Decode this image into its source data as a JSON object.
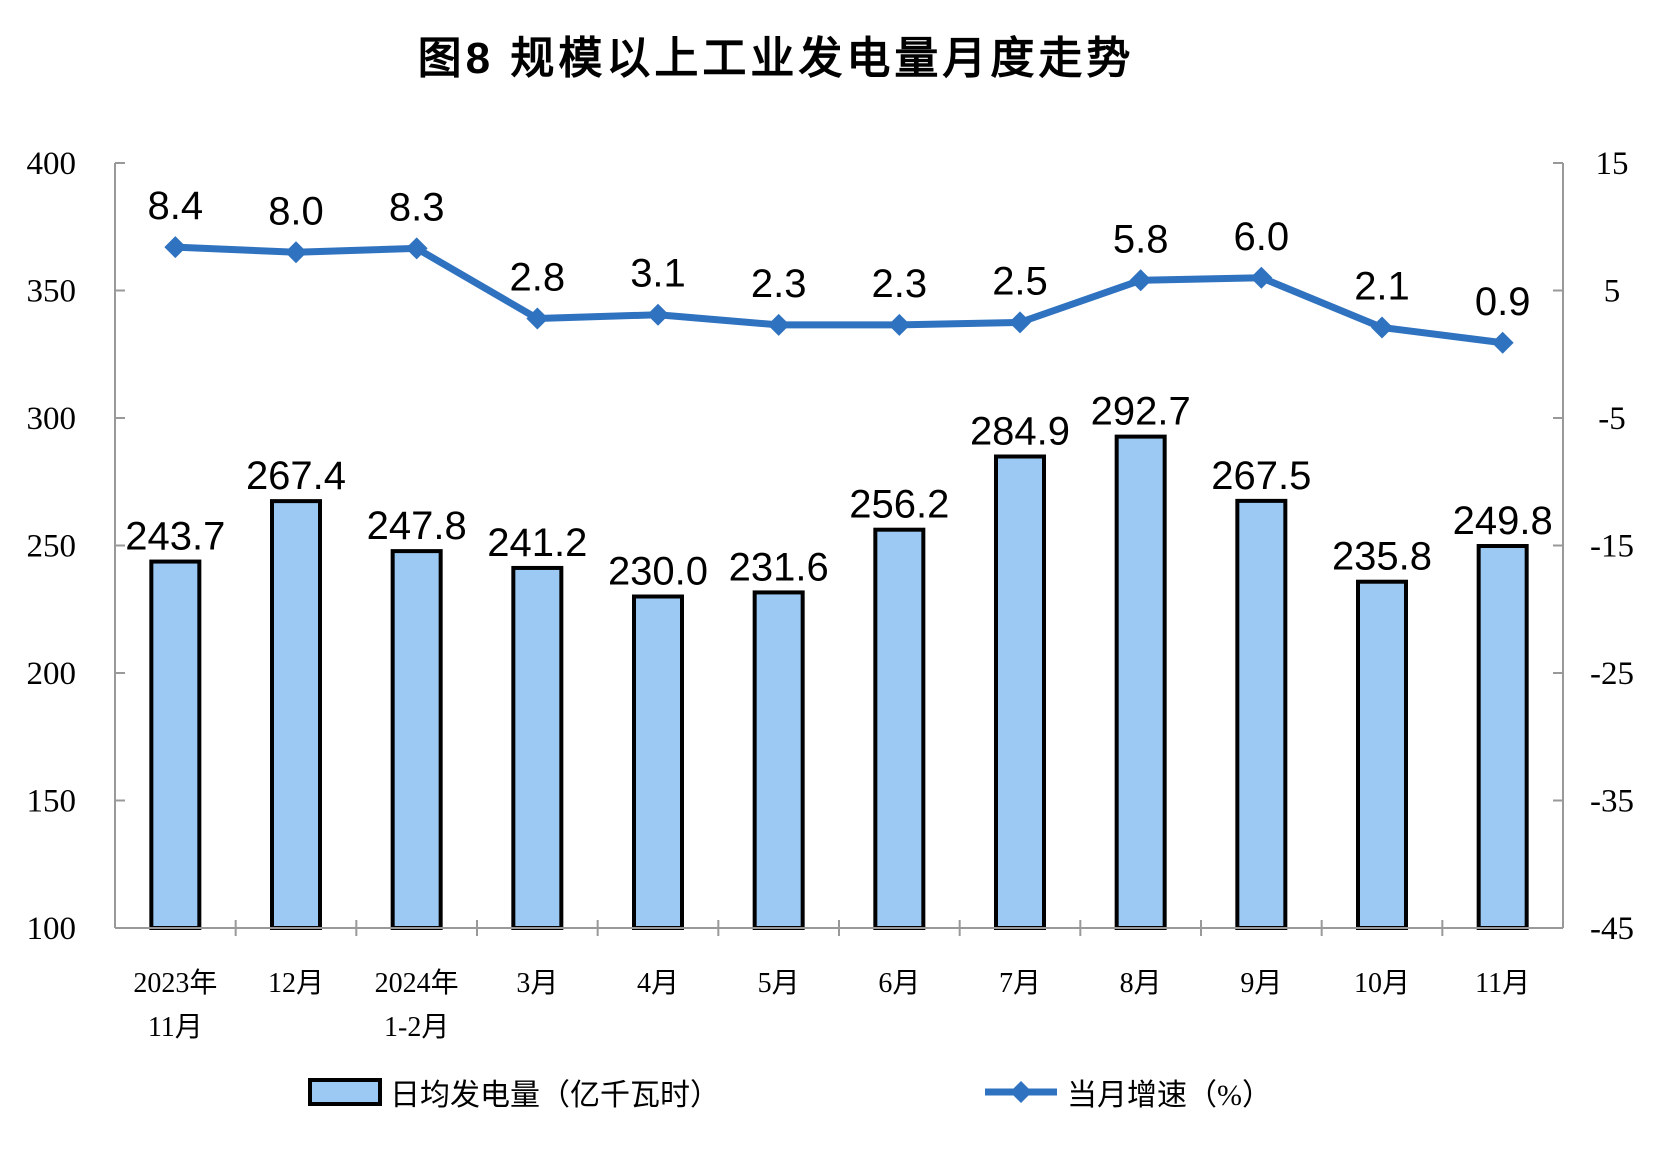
{
  "title": "图8 规模以上工业发电量月度走势",
  "legend": {
    "bar_label": "日均发电量（亿千瓦时）",
    "line_label": "当月增速（%）"
  },
  "colors": {
    "bar_fill": "#9CC9F3",
    "bar_border": "#000000",
    "line": "#2F72BF",
    "axis": "#999999",
    "text": "#000000",
    "background": "#FFFFFF"
  },
  "chart_data": {
    "type": "combo-bar-line",
    "title": "图8 规模以上工业发电量月度走势",
    "categories": [
      [
        "2023年",
        "11月"
      ],
      [
        "12月"
      ],
      [
        "2024年",
        "1-2月"
      ],
      [
        "3月"
      ],
      [
        "4月"
      ],
      [
        "5月"
      ],
      [
        "6月"
      ],
      [
        "7月"
      ],
      [
        "8月"
      ],
      [
        "9月"
      ],
      [
        "10月"
      ],
      [
        "11月"
      ]
    ],
    "series": [
      {
        "name": "日均发电量（亿千瓦时）",
        "type": "bar",
        "axis": "left",
        "values": [
          243.7,
          267.4,
          247.8,
          241.2,
          230.0,
          231.6,
          256.2,
          284.9,
          292.7,
          267.5,
          235.8,
          249.8
        ]
      },
      {
        "name": "当月增速（%）",
        "type": "line",
        "axis": "right",
        "values": [
          8.4,
          8.0,
          8.3,
          2.8,
          3.1,
          2.3,
          2.3,
          2.5,
          5.8,
          6.0,
          2.1,
          0.9
        ]
      }
    ],
    "left_axis": {
      "min": 100,
      "max": 400,
      "step": 50,
      "ticks": [
        400,
        350,
        300,
        250,
        200,
        150,
        100
      ]
    },
    "right_axis": {
      "min": -45,
      "max": 15,
      "step": 10,
      "ticks": [
        15,
        5,
        -5,
        -15,
        -25,
        -35,
        -45
      ]
    },
    "value_label_decimals": 1,
    "grid": false,
    "legend_position": "bottom"
  }
}
